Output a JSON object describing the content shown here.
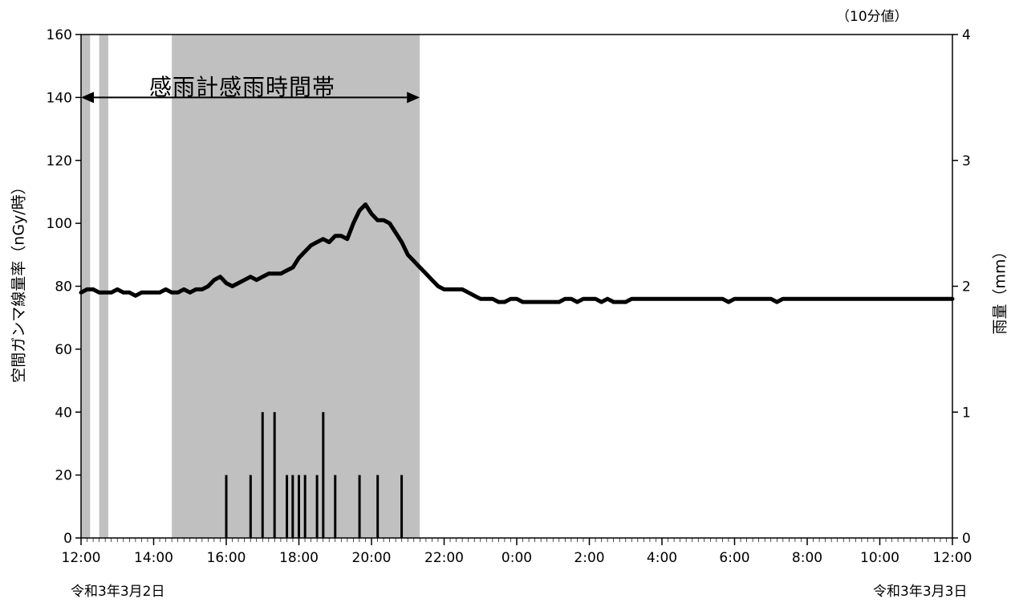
{
  "chart_data": {
    "type": "line",
    "unit_note": "（10分値）",
    "band_label": "感雨計感雨時間帯",
    "ylabel_left": "空間ガンマ線量率（nGy/時）",
    "ylabel_right": "雨量（mm）",
    "date_start": "令和3年3月2日",
    "date_end": "令和3年3月3日",
    "x_tick_labels": [
      "12:00",
      "14:00",
      "16:00",
      "18:00",
      "20:00",
      "22:00",
      "0:00",
      "2:00",
      "4:00",
      "6:00",
      "8:00",
      "10:00",
      "12:00"
    ],
    "x_tick_hours": [
      0,
      2,
      4,
      6,
      8,
      10,
      12,
      14,
      16,
      18,
      20,
      22,
      24
    ],
    "x_range_hours": [
      0,
      24
    ],
    "y_left_ticks": [
      0,
      20,
      40,
      60,
      80,
      100,
      120,
      140,
      160
    ],
    "y_left_range": [
      0,
      160
    ],
    "y_right_ticks": [
      0,
      1,
      2,
      3,
      4
    ],
    "y_right_range": [
      0,
      4
    ],
    "rain_bands_hours": [
      [
        0.0,
        0.25
      ],
      [
        0.5,
        0.75
      ],
      [
        2.5,
        9.33
      ]
    ],
    "rain_arrow_hours": [
      0.0,
      9.33
    ],
    "rain_arrow_value": 140,
    "series": [
      {
        "type": "line",
        "axis": "left",
        "interval_minutes": 10,
        "values": [
          78,
          79,
          79,
          78,
          78,
          78,
          79,
          78,
          78,
          77,
          78,
          78,
          78,
          78,
          79,
          78,
          78,
          79,
          78,
          79,
          79,
          80,
          82,
          83,
          81,
          80,
          81,
          82,
          83,
          82,
          83,
          84,
          84,
          84,
          85,
          86,
          89,
          91,
          93,
          94,
          95,
          94,
          96,
          96,
          95,
          100,
          104,
          106,
          103,
          101,
          101,
          100,
          97,
          94,
          90,
          88,
          86,
          84,
          82,
          80,
          79,
          79,
          79,
          79,
          78,
          77,
          76,
          76,
          76,
          75,
          75,
          76,
          76,
          75,
          75,
          75,
          75,
          75,
          75,
          75,
          76,
          76,
          75,
          76,
          76,
          76,
          75,
          76,
          75,
          75,
          75,
          76,
          76,
          76,
          76,
          76,
          76,
          76,
          76,
          76,
          76,
          76,
          76,
          76,
          76,
          76,
          76,
          75,
          76,
          76,
          76,
          76,
          76,
          76,
          76,
          75,
          76,
          76,
          76,
          76,
          76,
          76,
          76,
          76,
          76,
          76,
          76,
          76,
          76,
          76,
          76,
          76,
          76,
          76,
          76,
          76,
          76,
          76,
          76,
          76,
          76,
          76,
          76,
          76,
          76
        ]
      },
      {
        "type": "bar",
        "axis": "right",
        "interval_minutes": 10,
        "points": [
          {
            "hour": 4.0,
            "value": 0.5
          },
          {
            "hour": 4.67,
            "value": 0.5
          },
          {
            "hour": 5.0,
            "value": 1.0
          },
          {
            "hour": 5.33,
            "value": 1.0
          },
          {
            "hour": 5.67,
            "value": 0.5
          },
          {
            "hour": 5.83,
            "value": 0.5
          },
          {
            "hour": 6.0,
            "value": 0.5
          },
          {
            "hour": 6.17,
            "value": 0.5
          },
          {
            "hour": 6.5,
            "value": 0.5
          },
          {
            "hour": 6.67,
            "value": 1.0
          },
          {
            "hour": 7.0,
            "value": 0.5
          },
          {
            "hour": 7.67,
            "value": 0.5
          },
          {
            "hour": 8.17,
            "value": 0.5
          },
          {
            "hour": 8.83,
            "value": 0.5
          }
        ]
      }
    ]
  }
}
